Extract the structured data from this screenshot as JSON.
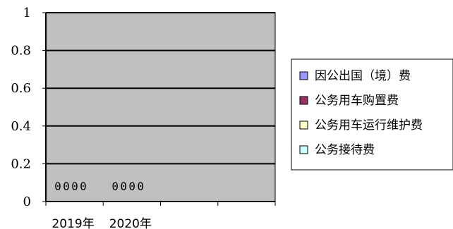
{
  "chart_data": {
    "type": "bar",
    "categories": [
      "2019年",
      "2020年"
    ],
    "series": [
      {
        "name": "因公出国（境）费",
        "values": [
          0,
          0
        ],
        "color": "#9999ff"
      },
      {
        "name": "公务用车购置费",
        "values": [
          0,
          0
        ],
        "color": "#993366"
      },
      {
        "name": "公务用车运行维护费",
        "values": [
          0,
          0
        ],
        "color": "#ffffcc"
      },
      {
        "name": "公务接待费",
        "values": [
          0,
          0
        ],
        "color": "#ccffff"
      }
    ],
    "data_labels": [
      "0",
      "0",
      "0",
      "0",
      "0",
      "0",
      "0",
      "0"
    ],
    "ylim": [
      0,
      1
    ],
    "yticks": [
      "0",
      "0.2",
      "0.4",
      "0.6",
      "0.8",
      "1"
    ],
    "grid": true,
    "plot_background": "#c0c0c0",
    "legend_position": "right"
  }
}
